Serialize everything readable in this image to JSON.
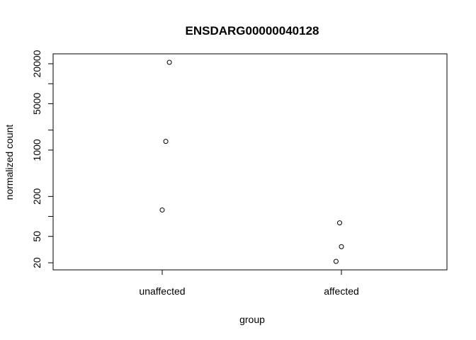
{
  "chart_data": {
    "type": "scatter",
    "title": "ENSDARG00000040128",
    "xlabel": "group",
    "ylabel": "normalized count",
    "categories": [
      "unaffected",
      "affected"
    ],
    "y_scale": "log",
    "yticks": [
      20,
      50,
      200,
      1000,
      5000,
      20000
    ],
    "yticks_minor": [
      100,
      2000,
      10000
    ],
    "ylim": [
      17,
      26000
    ],
    "grid": false,
    "legend": "none",
    "points": [
      {
        "group": "unaffected",
        "jitter": 0.04,
        "y": 21000
      },
      {
        "group": "unaffected",
        "jitter": 0.02,
        "y": 1350
      },
      {
        "group": "unaffected",
        "jitter": 0.0,
        "y": 125
      },
      {
        "group": "affected",
        "jitter": -0.01,
        "y": 80
      },
      {
        "group": "affected",
        "jitter": 0.0,
        "y": 35
      },
      {
        "group": "affected",
        "jitter": -0.03,
        "y": 21
      }
    ]
  }
}
